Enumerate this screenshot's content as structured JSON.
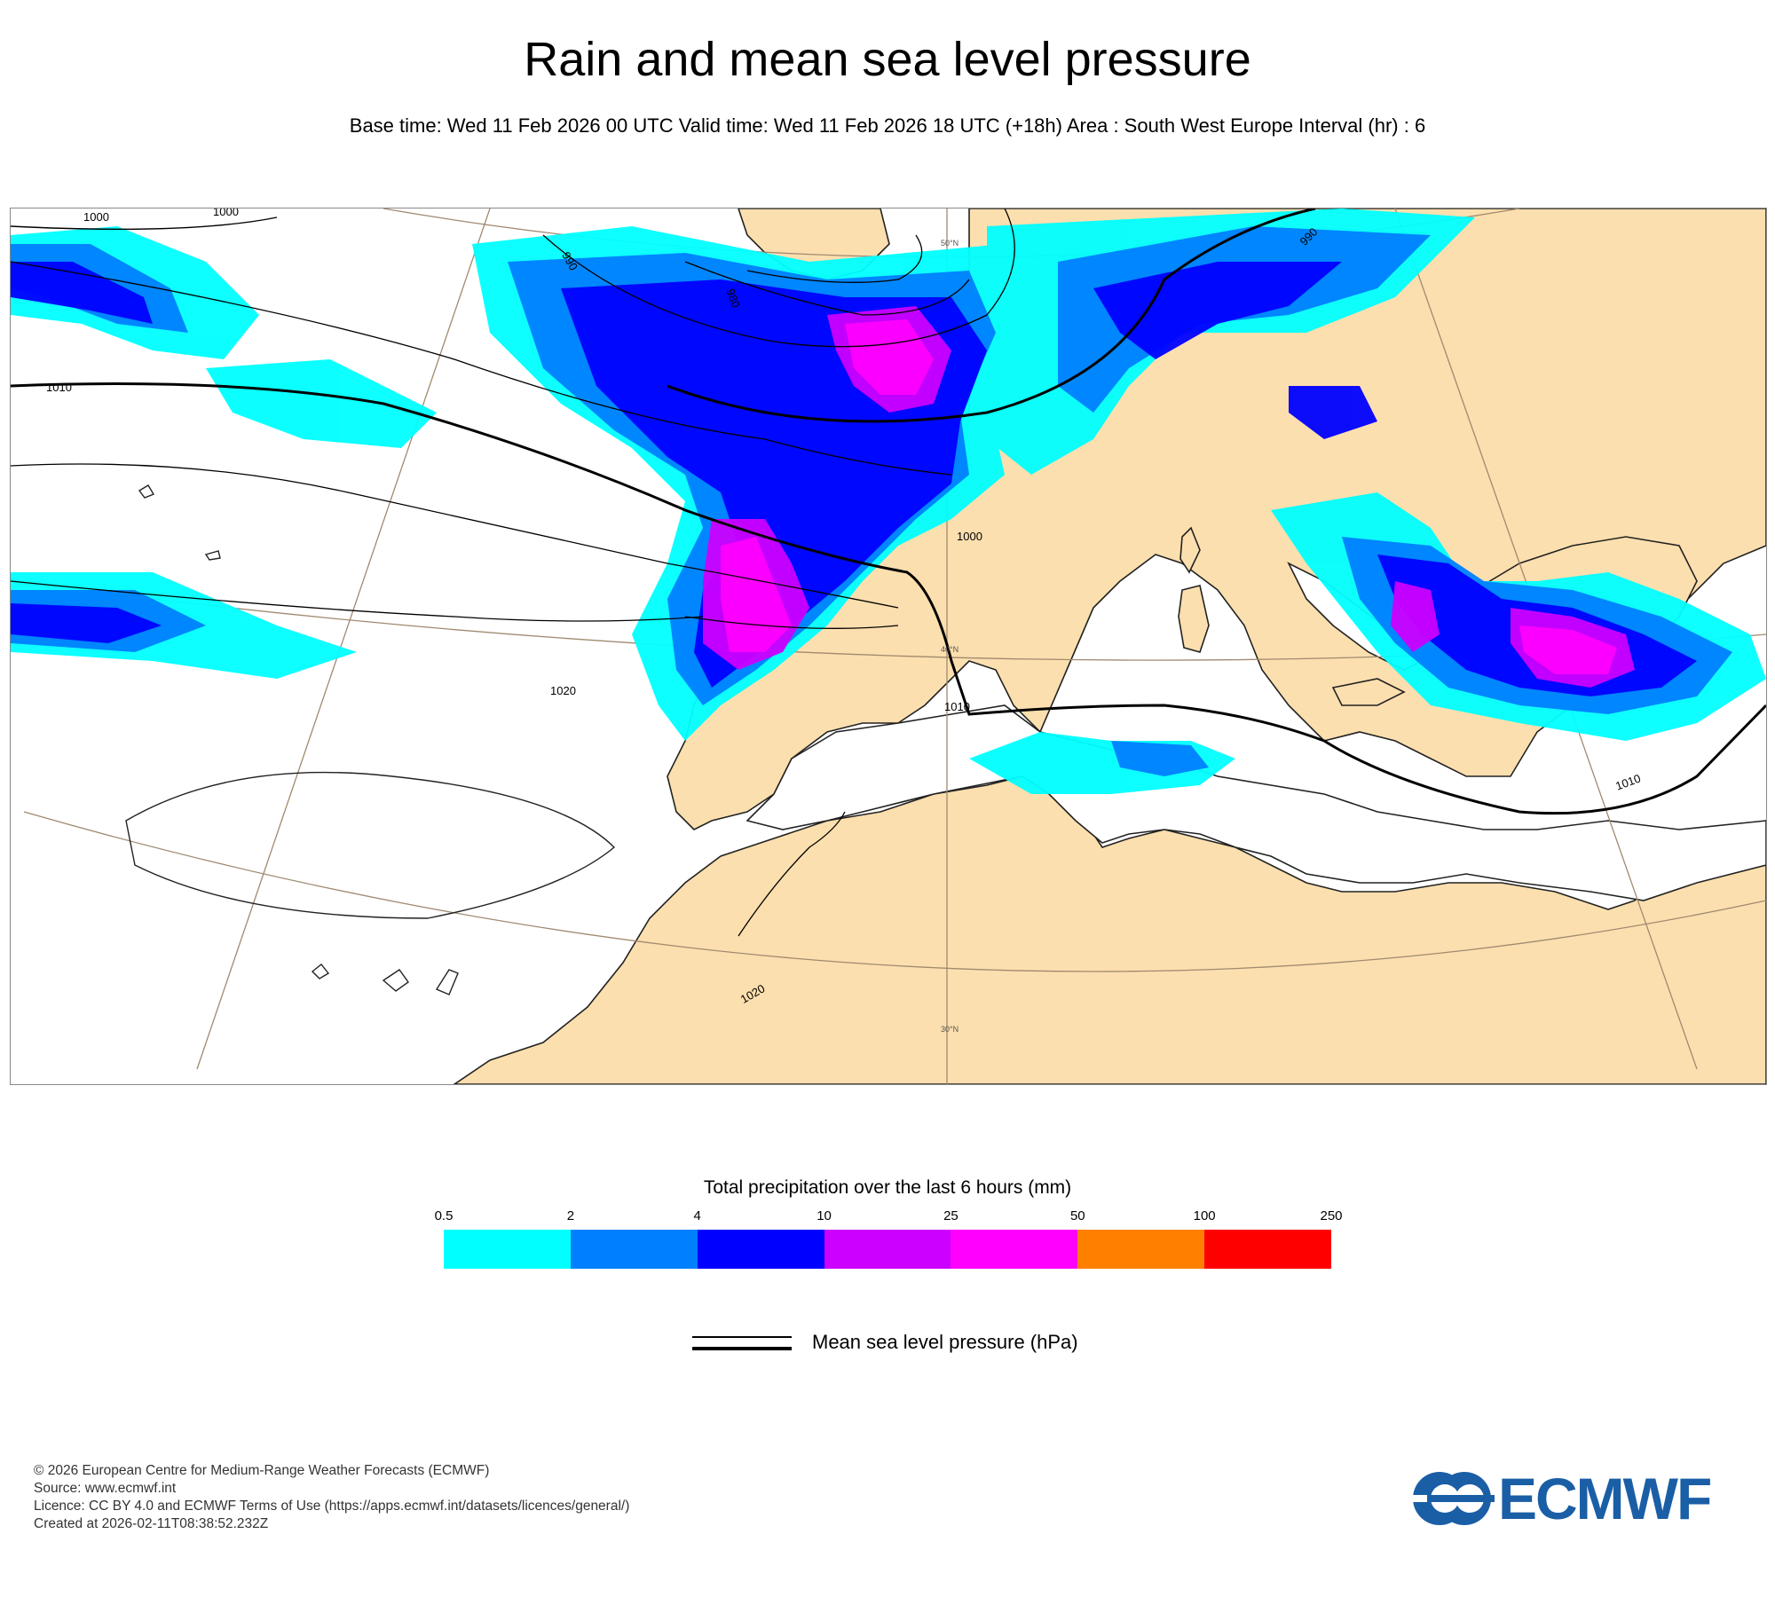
{
  "title": "Rain and mean sea level pressure",
  "subtitle": "Base time: Wed 11 Feb 2026 00 UTC Valid time: Wed 11 Feb 2026 18 UTC (+18h) Area : South West Europe Interval (hr) : 6",
  "map": {
    "isobar_labels": [
      "1000",
      "1000",
      "990",
      "980",
      "1010",
      "1000",
      "1020",
      "1010",
      "1010",
      "1020",
      "990"
    ],
    "latitude_labels": [
      "50°N",
      "40°N",
      "30°N"
    ],
    "colors": {
      "land": "#fcdfae",
      "sea": "#ffffff",
      "isobar": "#000000",
      "graticule": "#a08a70"
    }
  },
  "legend": {
    "title": "Total precipitation over the last 6 hours (mm)",
    "ticks": [
      "0.5",
      "2",
      "4",
      "10",
      "25",
      "50",
      "100",
      "250"
    ],
    "colors": [
      "#00ffff",
      "#0080ff",
      "#0000ff",
      "#cc00ff",
      "#ff00ff",
      "#ff8000",
      "#ff0000"
    ],
    "isobar_label": "Mean sea level pressure (hPa)"
  },
  "footer": {
    "copyright": "© 2026 European Centre for Medium-Range Weather Forecasts (ECMWF)",
    "source": "Source: www.ecmwf.int",
    "licence": "Licence: CC BY 4.0 and ECMWF Terms of Use (https://apps.ecmwf.int/datasets/licences/general/)",
    "created": "Created at 2026-02-11T08:38:52.232Z"
  },
  "logo": {
    "text": "ECMWF",
    "color": "#1a5ea6"
  }
}
